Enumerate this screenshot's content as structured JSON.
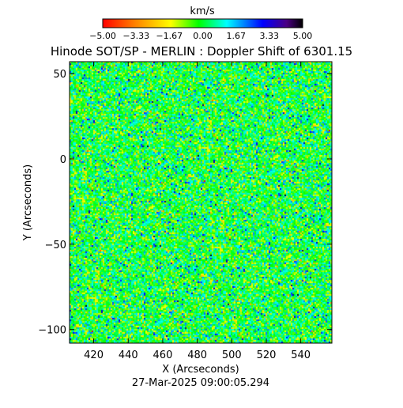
{
  "chart_data": {
    "type": "heatmap",
    "title": "Hinode SOT/SP - MERLIN : Doppler Shift of 6301.15",
    "xlabel": "X (Arcseconds)",
    "ylabel": "Y (Arcseconds)",
    "timestamp": "27-Mar-2025 09:00:05.294",
    "xlim": [
      406,
      558
    ],
    "ylim": [
      -108,
      57
    ],
    "xticks": [
      420,
      440,
      460,
      480,
      500,
      520,
      540
    ],
    "yticks": [
      50,
      0,
      -50,
      -100
    ],
    "xtick_labels": [
      "420",
      "440",
      "460",
      "480",
      "500",
      "520",
      "540"
    ],
    "ytick_labels": [
      "50",
      "0",
      "−50",
      "−100"
    ],
    "colorbar": {
      "unit_label": "km/s",
      "range": [
        -5.0,
        5.0
      ],
      "tick_values": [
        -5.0,
        -3.33,
        -1.67,
        0.0,
        1.67,
        3.33,
        5.0
      ],
      "tick_labels": [
        "−5.00",
        "−3.33",
        "−1.67",
        "0.00",
        "1.67",
        "3.33",
        "5.00"
      ],
      "colors": [
        "#ff0000",
        "#ff8000",
        "#ffff00",
        "#00ff00",
        "#00ffff",
        "#0000ff",
        "#000000"
      ]
    },
    "field_description": "Doppler velocity map dominated by near-zero values (green/cyan) with scattered blue positive and yellow negative speckles",
    "value_distribution": {
      "mean": 0.3,
      "std": 1.2
    }
  }
}
